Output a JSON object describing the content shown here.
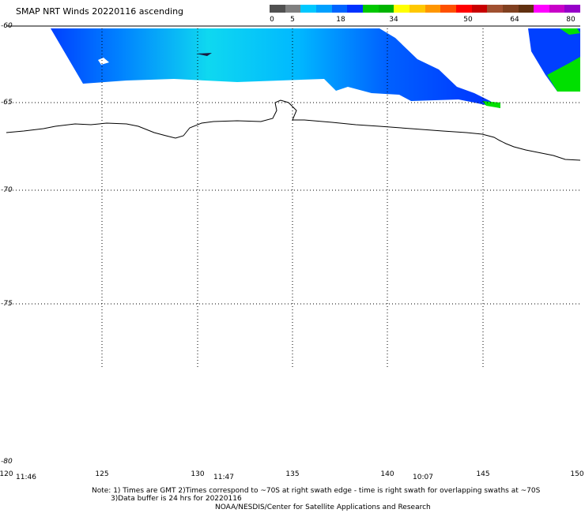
{
  "title": "SMAP NRT Winds 20220116 ascending",
  "color_scale": {
    "labels": [
      "0",
      "5",
      "18",
      "34",
      "50",
      "64",
      "80"
    ],
    "colors": [
      "#505050",
      "#808080",
      "#00c8ff",
      "#00a0ff",
      "#0064ff",
      "#0032ff",
      "#00c800",
      "#00b400",
      "#ffff00",
      "#ffc800",
      "#ff9600",
      "#ff5000",
      "#ff0000",
      "#c80000",
      "#a05030",
      "#804020",
      "#603010",
      "#ff00ff",
      "#c800c8",
      "#9600c8"
    ]
  },
  "lat_labels": [
    "-60",
    "-65",
    "-70",
    "-75",
    "-80"
  ],
  "lon_labels": [
    "120",
    "125",
    "130",
    "135",
    "140",
    "145",
    "150"
  ],
  "times": [
    "11:46",
    "11:47",
    "10:07"
  ],
  "notes": {
    "line1": "Note: 1) Times are GMT 2)Times correspond to ~70S at right swath edge - time is right swath for overlapping swaths at ~70S",
    "line2": "3)Data buffer is 24 hrs for 20220116",
    "line3": "NOAA/NESDIS/Center for Satellite Applications and Research"
  },
  "swath_colors": {
    "light": "#0fd8f0",
    "mid": "#00a0ff",
    "dark": "#0030ff",
    "green": "#00e000"
  }
}
